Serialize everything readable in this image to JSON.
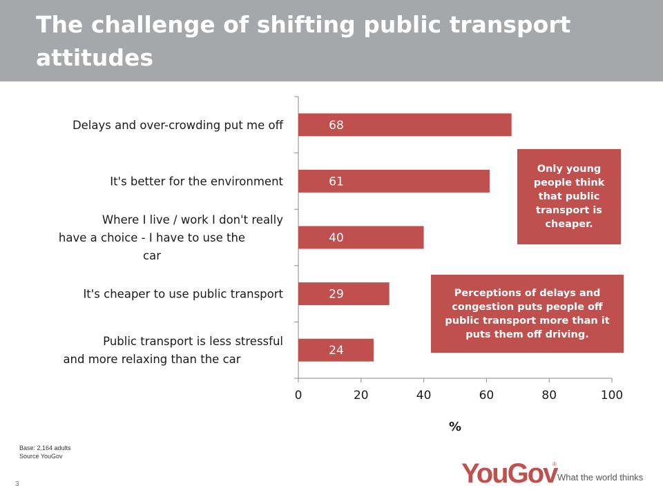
{
  "title": "The challenge of shifting public transport attitudes",
  "chart_data": {
    "type": "bar",
    "orientation": "horizontal",
    "categories": [
      "Delays and over-crowding put me off",
      "It's better for the environment",
      "Where I live / work I don't really have a choice - I have to use the car",
      "It's cheaper to use public transport",
      "Public transport is less stressful and more relaxing than the car"
    ],
    "values": [
      68,
      61,
      40,
      29,
      24
    ],
    "data_labels": [
      "68",
      "61",
      "40",
      "29",
      "24"
    ],
    "xlabel": "%",
    "ylabel": "",
    "xlim": [
      0,
      100
    ],
    "xticks": [
      0,
      20,
      40,
      60,
      80,
      100
    ],
    "grid": false,
    "legend": "none",
    "bar_color": "#c0504d"
  },
  "callouts": [
    "Only young people think that public transport is cheaper.",
    "Perceptions of delays and congestion puts people off public transport more than it puts them off driving."
  ],
  "footer": {
    "base": "Base: 2,164 adults",
    "source": "Source YouGov",
    "page_number": "3"
  },
  "logo": {
    "wordmark": "YouGov",
    "registered": "®",
    "tagline": "What the world thinks"
  },
  "colors": {
    "header": "#a6a7aa",
    "accent": "#c0504d"
  }
}
